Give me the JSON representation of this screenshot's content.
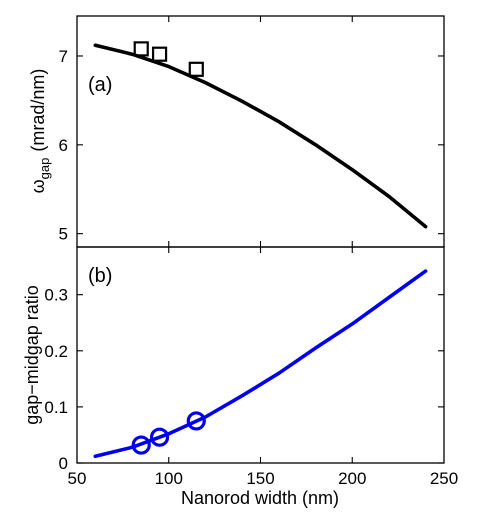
{
  "chart_data": [
    {
      "type": "line",
      "panel_label": "(a)",
      "ylabel": "ω",
      "ylabel_subscript": "gap",
      "ylabel_unit": "(mrad/nm)",
      "xlabel": "",
      "xlim": [
        50,
        250
      ],
      "ylim": [
        4.85,
        7.45
      ],
      "yticks": [
        5,
        6,
        7
      ],
      "ytick_labels": [
        "5",
        "6",
        "7"
      ],
      "grid": false,
      "series": [
        {
          "kind": "line",
          "color": "#000000",
          "x": [
            60,
            80,
            100,
            120,
            140,
            160,
            180,
            200,
            220,
            240
          ],
          "y": [
            7.12,
            7.02,
            6.88,
            6.7,
            6.49,
            6.26,
            6.0,
            5.72,
            5.42,
            5.08
          ]
        },
        {
          "kind": "markers",
          "marker": "square",
          "color": "#000000",
          "x": [
            85,
            95,
            115
          ],
          "y": [
            7.08,
            7.02,
            6.85
          ]
        }
      ]
    },
    {
      "type": "line",
      "panel_label": "(b)",
      "ylabel": "gap−midgap ratio",
      "xlabel": "Nanorod width (nm)",
      "xlim": [
        50,
        250
      ],
      "ylim": [
        0,
        0.385
      ],
      "xticks": [
        50,
        100,
        150,
        200,
        250
      ],
      "xtick_labels": [
        "50",
        "100",
        "150",
        "200",
        "250"
      ],
      "yticks": [
        0,
        0.1,
        0.2,
        0.3
      ],
      "ytick_labels": [
        "0",
        "0.1",
        "0.2",
        "0.3"
      ],
      "grid": false,
      "series": [
        {
          "kind": "line",
          "color": "#0000ee",
          "x": [
            60,
            80,
            100,
            120,
            140,
            160,
            180,
            200,
            220,
            240
          ],
          "y": [
            0.012,
            0.028,
            0.052,
            0.082,
            0.12,
            0.16,
            0.205,
            0.248,
            0.295,
            0.342
          ]
        },
        {
          "kind": "markers",
          "marker": "circle",
          "color": "#0000ee",
          "x": [
            85,
            95,
            115
          ],
          "y": [
            0.032,
            0.046,
            0.075
          ]
        }
      ]
    }
  ]
}
